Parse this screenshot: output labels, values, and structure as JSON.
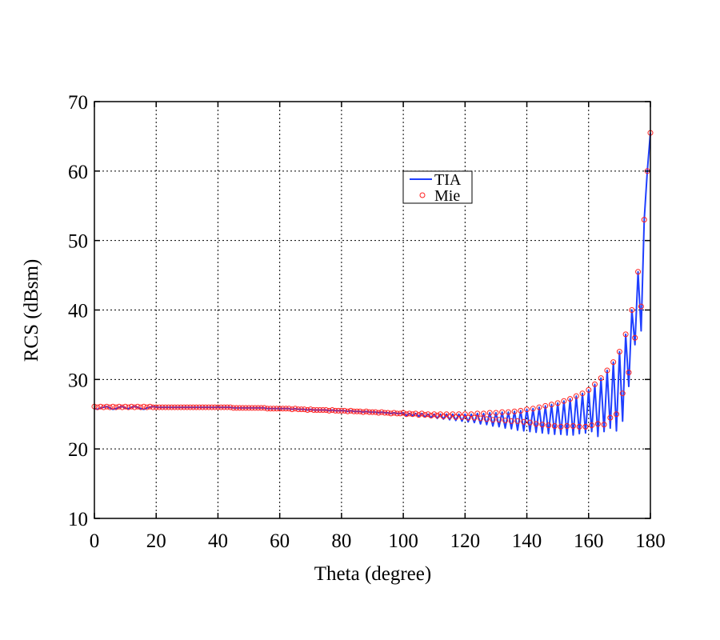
{
  "chart_data": {
    "type": "line",
    "title": "",
    "xlabel": "Theta (degree)",
    "ylabel": "RCS (dBsm)",
    "xlim": [
      0,
      180
    ],
    "ylim": [
      10,
      70
    ],
    "xticks": [
      "0",
      "20",
      "40",
      "60",
      "80",
      "100",
      "120",
      "140",
      "160",
      "180"
    ],
    "yticks": [
      "10",
      "20",
      "30",
      "40",
      "50",
      "60",
      "70"
    ],
    "grid": true,
    "legend_position": "top-center",
    "x_start": 0,
    "x_step": 1,
    "series": [
      {
        "name": "TIA",
        "style": "line",
        "color": "#1f3fff",
        "values": [
          25.8,
          25.7,
          25.9,
          26.0,
          26.1,
          25.9,
          25.7,
          25.8,
          26.0,
          26.1,
          25.9,
          25.8,
          26.0,
          26.1,
          26.0,
          25.8,
          25.7,
          25.9,
          26.0,
          26.1,
          26.0,
          26.0,
          26.0,
          26.0,
          26.0,
          26.0,
          26.0,
          26.0,
          26.0,
          26.0,
          26.0,
          26.0,
          26.0,
          26.0,
          26.0,
          26.0,
          26.0,
          26.0,
          26.0,
          26.0,
          26.0,
          26.0,
          26.0,
          26.0,
          26.0,
          25.9,
          25.9,
          25.9,
          25.9,
          25.9,
          25.9,
          25.9,
          25.9,
          25.9,
          25.9,
          25.9,
          25.8,
          25.8,
          25.8,
          25.8,
          25.8,
          25.8,
          25.8,
          25.8,
          25.7,
          25.8,
          25.7,
          25.7,
          25.7,
          25.6,
          25.7,
          25.6,
          25.6,
          25.6,
          25.6,
          25.6,
          25.5,
          25.6,
          25.5,
          25.5,
          25.5,
          25.5,
          25.4,
          25.5,
          25.4,
          25.4,
          25.4,
          25.3,
          25.4,
          25.3,
          25.3,
          25.3,
          25.2,
          25.3,
          25.2,
          25.2,
          25.1,
          25.2,
          25.1,
          25.1,
          25.2,
          24.8,
          25.1,
          24.8,
          25.1,
          24.7,
          25.1,
          24.6,
          25.0,
          24.5,
          25.0,
          24.4,
          25.0,
          24.3,
          25.0,
          24.2,
          25.0,
          24.1,
          25.0,
          24.0,
          25.0,
          23.9,
          25.0,
          23.8,
          25.1,
          23.6,
          25.1,
          23.5,
          25.2,
          23.3,
          25.2,
          23.2,
          25.3,
          23.0,
          25.3,
          22.9,
          25.4,
          22.7,
          25.5,
          22.6,
          25.7,
          22.5,
          25.8,
          22.4,
          26.0,
          22.3,
          26.2,
          22.2,
          26.4,
          22.1,
          26.6,
          22.1,
          26.9,
          22.0,
          27.2,
          22.0,
          27.6,
          22.2,
          28.0,
          22.3,
          28.5,
          22.5,
          29.3,
          21.8,
          30.2,
          22.5,
          31.3,
          23.0,
          32.5,
          22.6,
          34.0,
          24.0,
          36.5,
          29.0,
          40.0,
          35.0,
          45.5,
          37.0,
          53.0,
          60.0,
          65.5
        ]
      },
      {
        "name": "Mie",
        "style": "marker",
        "color": "#ff2020",
        "values": [
          26.1,
          26.0,
          26.1,
          26.0,
          26.1,
          26.0,
          26.1,
          26.0,
          26.1,
          26.0,
          26.1,
          26.0,
          26.1,
          26.0,
          26.1,
          26.0,
          26.1,
          26.0,
          26.1,
          26.0,
          26.0,
          26.0,
          26.0,
          26.0,
          26.0,
          26.0,
          26.0,
          26.0,
          26.0,
          26.0,
          26.0,
          26.0,
          26.0,
          26.0,
          26.0,
          26.0,
          26.0,
          26.0,
          26.0,
          26.0,
          26.0,
          26.0,
          26.0,
          26.0,
          26.0,
          25.9,
          25.9,
          25.9,
          25.9,
          25.9,
          25.9,
          25.9,
          25.9,
          25.9,
          25.9,
          25.9,
          25.8,
          25.8,
          25.8,
          25.8,
          25.8,
          25.8,
          25.8,
          25.8,
          25.7,
          25.8,
          25.7,
          25.7,
          25.7,
          25.6,
          25.7,
          25.6,
          25.6,
          25.6,
          25.6,
          25.6,
          25.5,
          25.6,
          25.5,
          25.5,
          25.5,
          25.5,
          25.4,
          25.5,
          25.4,
          25.4,
          25.4,
          25.3,
          25.4,
          25.3,
          25.3,
          25.3,
          25.2,
          25.3,
          25.2,
          25.2,
          25.1,
          25.2,
          25.1,
          25.1,
          25.2,
          25.0,
          25.1,
          25.0,
          25.1,
          24.9,
          25.1,
          24.9,
          25.0,
          24.8,
          25.0,
          24.8,
          25.0,
          24.7,
          25.0,
          24.7,
          25.0,
          24.6,
          25.0,
          24.6,
          25.0,
          24.5,
          25.0,
          24.5,
          25.1,
          24.4,
          25.1,
          24.3,
          25.2,
          24.2,
          25.2,
          24.2,
          25.3,
          24.1,
          25.3,
          24.0,
          25.4,
          24.0,
          25.5,
          23.9,
          25.7,
          23.8,
          25.8,
          23.6,
          26.0,
          23.5,
          26.2,
          23.4,
          26.4,
          23.3,
          26.6,
          23.2,
          26.9,
          23.3,
          27.2,
          23.3,
          27.6,
          23.2,
          28.0,
          23.2,
          28.5,
          23.4,
          29.3,
          23.6,
          30.2,
          23.5,
          31.3,
          24.5,
          32.5,
          25.0,
          34.0,
          28.0,
          36.5,
          31.0,
          40.0,
          36.0,
          45.5,
          40.5,
          53.0,
          60.0,
          65.5
        ]
      }
    ]
  }
}
